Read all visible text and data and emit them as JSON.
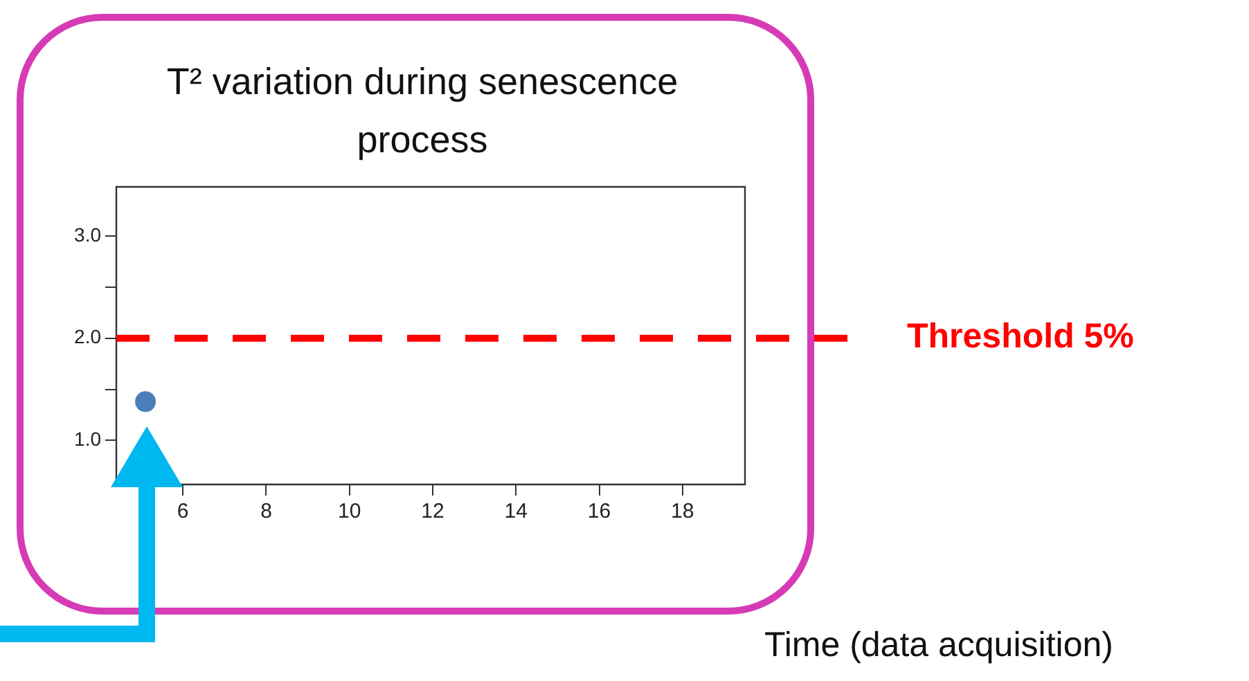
{
  "chart_data": {
    "type": "scatter",
    "title": "T² variation during senescence process",
    "xlabel": "Time (data acquisition)",
    "x": [
      5.1
    ],
    "series": [
      {
        "color": "#4a7ebb",
        "values": [
          1.38
        ]
      }
    ],
    "xlim": [
      4.4,
      19.5
    ],
    "xticks": [
      6,
      8,
      10,
      12,
      14,
      16,
      18
    ],
    "ylim": [
      0.57,
      3.48
    ],
    "yticks": [
      {
        "value": 1,
        "label": "1.0"
      },
      {
        "value": 1.5,
        "label": null
      },
      {
        "value": 2,
        "label": "2.0"
      },
      {
        "value": 2.5,
        "label": null
      },
      {
        "value": 3,
        "label": "3.0"
      }
    ],
    "ref_lines": [
      {
        "axis": "y",
        "value": 2,
        "label": "Threshold 5%",
        "color": "#ff0000",
        "line_style": "dashed"
      }
    ],
    "grid": false,
    "legend": false,
    "marker": "circle"
  }
}
